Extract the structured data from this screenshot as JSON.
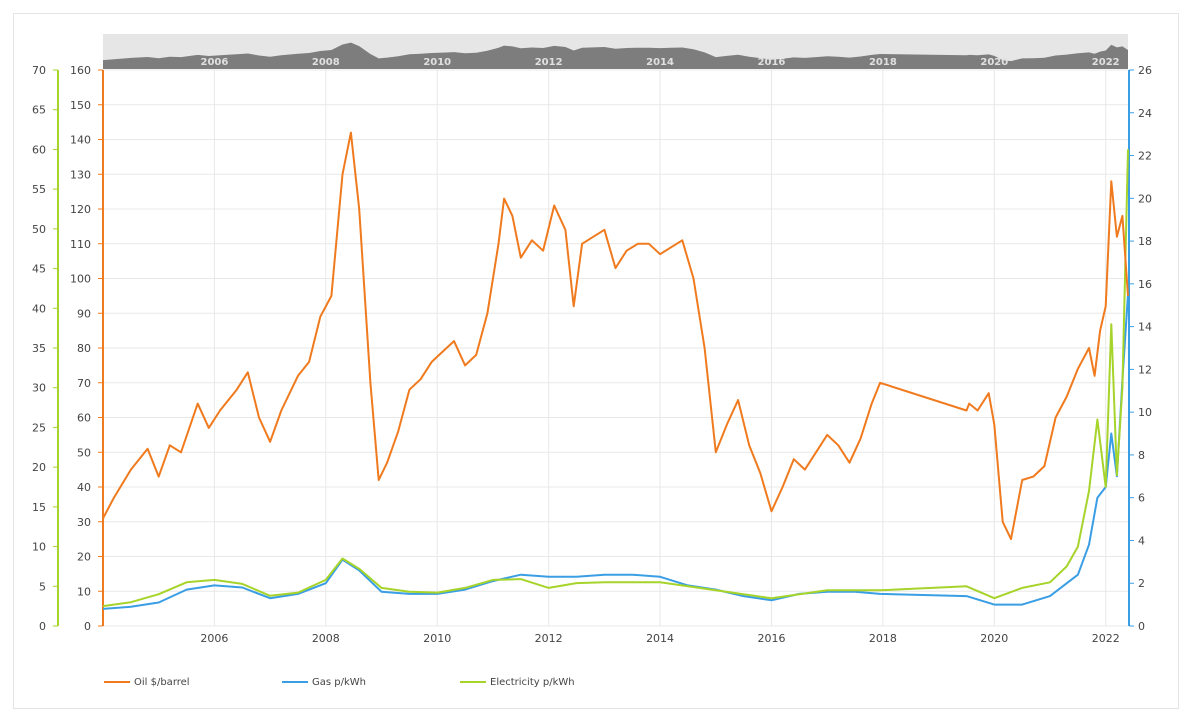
{
  "colors": {
    "oil": "#f07a1e",
    "gas": "#3a9ee4",
    "electricity": "#a6d42a",
    "grid": "#e8e8e8",
    "navigator_bg": "#e6e6e6",
    "navigator_area": "#7d7d7d"
  },
  "chart_data": {
    "type": "line",
    "x_range": [
      2004.0,
      2022.4
    ],
    "x_ticks": [
      "2006",
      "2008",
      "2010",
      "2012",
      "2014",
      "2016",
      "2018",
      "2020",
      "2022"
    ],
    "navigator_ticks": [
      "2006",
      "2008",
      "2010",
      "2012",
      "2014",
      "2016",
      "2018",
      "2020",
      "2022"
    ],
    "grid": true,
    "legend_position": "bottom-left",
    "axes": {
      "left_outer": {
        "series": "Electricity p/kWh",
        "range": [
          0,
          70
        ],
        "ticks": [
          "0",
          "5",
          "10",
          "15",
          "20",
          "25",
          "30",
          "35",
          "40",
          "45",
          "50",
          "55",
          "60",
          "65",
          "70"
        ]
      },
      "left_inner": {
        "series": "Oil $/barrel",
        "range": [
          0,
          160
        ],
        "ticks": [
          "0",
          "10",
          "20",
          "30",
          "40",
          "50",
          "60",
          "70",
          "80",
          "90",
          "100",
          "110",
          "120",
          "130",
          "140",
          "150",
          "160"
        ]
      },
      "right": {
        "series": "Gas p/kWh",
        "range": [
          0,
          26
        ],
        "ticks": [
          "0",
          "2",
          "4",
          "6",
          "8",
          "10",
          "12",
          "14",
          "16",
          "18",
          "20",
          "22",
          "24",
          "26"
        ]
      }
    },
    "series": [
      {
        "name": "Oil $/barrel",
        "axis": "left_inner",
        "points": [
          [
            2004.0,
            31
          ],
          [
            2004.2,
            37
          ],
          [
            2004.5,
            45
          ],
          [
            2004.8,
            51
          ],
          [
            2005.0,
            43
          ],
          [
            2005.2,
            52
          ],
          [
            2005.4,
            50
          ],
          [
            2005.7,
            64
          ],
          [
            2005.9,
            57
          ],
          [
            2006.1,
            62
          ],
          [
            2006.4,
            68
          ],
          [
            2006.6,
            73
          ],
          [
            2006.8,
            60
          ],
          [
            2007.0,
            53
          ],
          [
            2007.2,
            62
          ],
          [
            2007.5,
            72
          ],
          [
            2007.7,
            76
          ],
          [
            2007.9,
            89
          ],
          [
            2008.1,
            95
          ],
          [
            2008.3,
            130
          ],
          [
            2008.45,
            142
          ],
          [
            2008.6,
            120
          ],
          [
            2008.8,
            70
          ],
          [
            2008.95,
            42
          ],
          [
            2009.1,
            47
          ],
          [
            2009.3,
            56
          ],
          [
            2009.5,
            68
          ],
          [
            2009.7,
            71
          ],
          [
            2009.9,
            76
          ],
          [
            2010.1,
            79
          ],
          [
            2010.3,
            82
          ],
          [
            2010.5,
            75
          ],
          [
            2010.7,
            78
          ],
          [
            2010.9,
            90
          ],
          [
            2011.1,
            110
          ],
          [
            2011.2,
            123
          ],
          [
            2011.35,
            118
          ],
          [
            2011.5,
            106
          ],
          [
            2011.7,
            111
          ],
          [
            2011.9,
            108
          ],
          [
            2012.1,
            121
          ],
          [
            2012.3,
            114
          ],
          [
            2012.45,
            92
          ],
          [
            2012.6,
            110
          ],
          [
            2012.8,
            112
          ],
          [
            2013.0,
            114
          ],
          [
            2013.2,
            103
          ],
          [
            2013.4,
            108
          ],
          [
            2013.6,
            110
          ],
          [
            2013.8,
            110
          ],
          [
            2014.0,
            107
          ],
          [
            2014.2,
            109
          ],
          [
            2014.4,
            111
          ],
          [
            2014.6,
            100
          ],
          [
            2014.8,
            80
          ],
          [
            2015.0,
            50
          ],
          [
            2015.2,
            58
          ],
          [
            2015.4,
            65
          ],
          [
            2015.6,
            52
          ],
          [
            2015.8,
            44
          ],
          [
            2016.0,
            33
          ],
          [
            2016.2,
            40
          ],
          [
            2016.4,
            48
          ],
          [
            2016.6,
            45
          ],
          [
            2016.8,
            50
          ],
          [
            2017.0,
            55
          ],
          [
            2017.2,
            52
          ],
          [
            2017.4,
            47
          ],
          [
            2017.6,
            54
          ],
          [
            2017.8,
            64
          ],
          [
            2017.95,
            70
          ],
          [
            2019.5,
            62
          ],
          [
            2019.55,
            64
          ],
          [
            2019.7,
            62
          ],
          [
            2019.9,
            67
          ],
          [
            2020.0,
            58
          ],
          [
            2020.15,
            30
          ],
          [
            2020.3,
            25
          ],
          [
            2020.5,
            42
          ],
          [
            2020.7,
            43
          ],
          [
            2020.9,
            46
          ],
          [
            2021.1,
            60
          ],
          [
            2021.3,
            66
          ],
          [
            2021.5,
            74
          ],
          [
            2021.7,
            80
          ],
          [
            2021.8,
            72
          ],
          [
            2021.9,
            85
          ],
          [
            2022.0,
            92
          ],
          [
            2022.1,
            128
          ],
          [
            2022.2,
            112
          ],
          [
            2022.3,
            118
          ],
          [
            2022.4,
            95
          ]
        ]
      },
      {
        "name": "Gas p/kWh",
        "axis": "right",
        "points": [
          [
            2004.0,
            0.8
          ],
          [
            2004.5,
            0.9
          ],
          [
            2005.0,
            1.1
          ],
          [
            2005.5,
            1.7
          ],
          [
            2006.0,
            1.9
          ],
          [
            2006.5,
            1.8
          ],
          [
            2007.0,
            1.3
          ],
          [
            2007.5,
            1.5
          ],
          [
            2008.0,
            2.0
          ],
          [
            2008.3,
            3.1
          ],
          [
            2008.6,
            2.6
          ],
          [
            2009.0,
            1.6
          ],
          [
            2009.5,
            1.5
          ],
          [
            2010.0,
            1.5
          ],
          [
            2010.5,
            1.7
          ],
          [
            2011.0,
            2.1
          ],
          [
            2011.5,
            2.4
          ],
          [
            2012.0,
            2.3
          ],
          [
            2012.5,
            2.3
          ],
          [
            2013.0,
            2.4
          ],
          [
            2013.5,
            2.4
          ],
          [
            2014.0,
            2.3
          ],
          [
            2014.5,
            1.9
          ],
          [
            2015.0,
            1.7
          ],
          [
            2015.5,
            1.4
          ],
          [
            2016.0,
            1.2
          ],
          [
            2016.5,
            1.5
          ],
          [
            2017.0,
            1.6
          ],
          [
            2017.5,
            1.6
          ],
          [
            2017.95,
            1.5
          ],
          [
            2019.5,
            1.4
          ],
          [
            2020.0,
            1.0
          ],
          [
            2020.5,
            1.0
          ],
          [
            2021.0,
            1.4
          ],
          [
            2021.5,
            2.4
          ],
          [
            2021.7,
            3.8
          ],
          [
            2021.85,
            6.0
          ],
          [
            2022.0,
            6.5
          ],
          [
            2022.1,
            9.0
          ],
          [
            2022.2,
            7.0
          ],
          [
            2022.3,
            11.5
          ],
          [
            2022.4,
            15.5
          ]
        ]
      },
      {
        "name": "Electricity p/kWh",
        "axis": "left_outer",
        "points": [
          [
            2004.0,
            2.5
          ],
          [
            2004.5,
            3.0
          ],
          [
            2005.0,
            4.0
          ],
          [
            2005.5,
            5.5
          ],
          [
            2006.0,
            5.8
          ],
          [
            2006.5,
            5.3
          ],
          [
            2007.0,
            3.8
          ],
          [
            2007.5,
            4.2
          ],
          [
            2008.0,
            5.8
          ],
          [
            2008.3,
            8.5
          ],
          [
            2008.6,
            7.2
          ],
          [
            2009.0,
            4.8
          ],
          [
            2009.5,
            4.3
          ],
          [
            2010.0,
            4.2
          ],
          [
            2010.5,
            4.8
          ],
          [
            2011.0,
            5.8
          ],
          [
            2011.5,
            5.9
          ],
          [
            2012.0,
            4.8
          ],
          [
            2012.5,
            5.4
          ],
          [
            2013.0,
            5.5
          ],
          [
            2013.5,
            5.5
          ],
          [
            2014.0,
            5.5
          ],
          [
            2014.5,
            5.0
          ],
          [
            2015.0,
            4.5
          ],
          [
            2015.5,
            4.0
          ],
          [
            2016.0,
            3.5
          ],
          [
            2016.5,
            4.0
          ],
          [
            2017.0,
            4.5
          ],
          [
            2017.5,
            4.5
          ],
          [
            2017.95,
            4.5
          ],
          [
            2019.5,
            5.0
          ],
          [
            2020.0,
            3.5
          ],
          [
            2020.5,
            4.8
          ],
          [
            2021.0,
            5.5
          ],
          [
            2021.3,
            7.5
          ],
          [
            2021.5,
            10.0
          ],
          [
            2021.7,
            17.0
          ],
          [
            2021.85,
            26.0
          ],
          [
            2022.0,
            17.5
          ],
          [
            2022.1,
            38.0
          ],
          [
            2022.2,
            19.0
          ],
          [
            2022.3,
            30.0
          ],
          [
            2022.4,
            60.0
          ]
        ]
      }
    ]
  },
  "legend": [
    {
      "label": "Oil $/barrel",
      "color_key": "oil"
    },
    {
      "label": "Gas p/kWh",
      "color_key": "gas"
    },
    {
      "label": "Electricity p/kWh",
      "color_key": "electricity"
    }
  ]
}
